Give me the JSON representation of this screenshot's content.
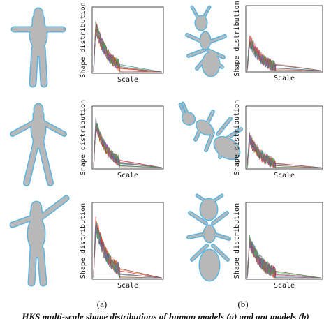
{
  "panels": [
    {
      "y_label": "Shape distribution",
      "x_label": "Scale"
    },
    {
      "y_label": "Shape distribution",
      "x_label": "Scale"
    },
    {
      "y_label": "Shape distribution",
      "x_label": "Scale"
    },
    {
      "y_label": "Shape distribution",
      "x_label": "Scale"
    },
    {
      "y_label": "Shape distribution",
      "x_label": "Scale"
    },
    {
      "y_label": "Shape distribution",
      "x_label": "Scale"
    }
  ],
  "subfigure_labels": [
    "(a)",
    "(b)"
  ],
  "caption": "HKS multi-scale shape distributions of human models (a) and ant models (b)"
}
